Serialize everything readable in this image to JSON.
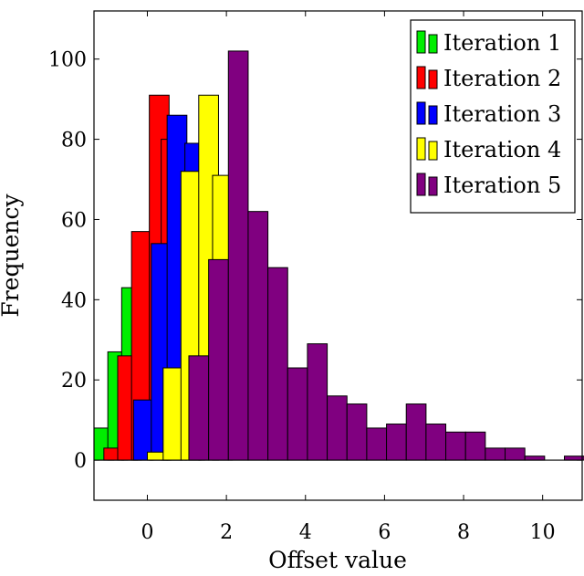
{
  "chart_data": {
    "type": "bar",
    "xlabel": "Offset value",
    "ylabel": "Frequency",
    "xlim": [
      -1.35,
      11.0
    ],
    "ylim": [
      -10,
      112
    ],
    "xticks": [
      0,
      2,
      4,
      6,
      8,
      10
    ],
    "yticks": [
      0,
      20,
      40,
      60,
      80,
      100
    ],
    "xtick_labels": [
      "0",
      "2",
      "4",
      "6",
      "8",
      "10"
    ],
    "ytick_labels": [
      "0",
      "20",
      "40",
      "60",
      "80",
      "100"
    ],
    "legend_position": "top-right",
    "bin_width": 0.5,
    "series": [
      {
        "name": "Iteration 1",
        "color": "#00ee00",
        "bins": [
          {
            "left": -1.35,
            "value": 8
          },
          {
            "left": -1.0,
            "value": 27
          },
          {
            "left": -0.65,
            "value": 43
          }
        ]
      },
      {
        "name": "Iteration 2",
        "color": "#ff0000",
        "bins": [
          {
            "left": -1.1,
            "value": 3
          },
          {
            "left": -0.75,
            "value": 26
          },
          {
            "left": -0.4,
            "value": 57
          },
          {
            "left": 0.05,
            "value": 91
          },
          {
            "left": 0.35,
            "value": 80
          }
        ]
      },
      {
        "name": "Iteration 3",
        "color": "#0000ff",
        "bins": [
          {
            "left": -0.35,
            "value": 15
          },
          {
            "left": 0.1,
            "value": 54
          },
          {
            "left": 0.5,
            "value": 86
          },
          {
            "left": 0.95,
            "value": 79
          }
        ]
      },
      {
        "name": "Iteration 4",
        "color": "#ffff00",
        "bins": [
          {
            "left": 0.0,
            "value": 2
          },
          {
            "left": 0.4,
            "value": 23
          },
          {
            "left": 0.85,
            "value": 72
          },
          {
            "left": 1.3,
            "value": 91
          },
          {
            "left": 1.65,
            "value": 71
          }
        ]
      },
      {
        "name": "Iteration 5",
        "color": "#800080",
        "bins": [
          {
            "left": 1.05,
            "value": 26
          },
          {
            "left": 1.55,
            "value": 50
          },
          {
            "left": 2.05,
            "value": 102
          },
          {
            "left": 2.55,
            "value": 62
          },
          {
            "left": 3.05,
            "value": 48
          },
          {
            "left": 3.55,
            "value": 23
          },
          {
            "left": 4.05,
            "value": 29
          },
          {
            "left": 4.55,
            "value": 16
          },
          {
            "left": 5.05,
            "value": 14
          },
          {
            "left": 5.55,
            "value": 8
          },
          {
            "left": 6.05,
            "value": 9
          },
          {
            "left": 6.55,
            "value": 14
          },
          {
            "left": 7.05,
            "value": 9
          },
          {
            "left": 7.55,
            "value": 7
          },
          {
            "left": 8.05,
            "value": 7
          },
          {
            "left": 8.55,
            "value": 3
          },
          {
            "left": 9.05,
            "value": 3
          },
          {
            "left": 9.55,
            "value": 1
          },
          {
            "left": 10.05,
            "value": 0
          },
          {
            "left": 10.55,
            "value": 1
          }
        ]
      }
    ]
  }
}
